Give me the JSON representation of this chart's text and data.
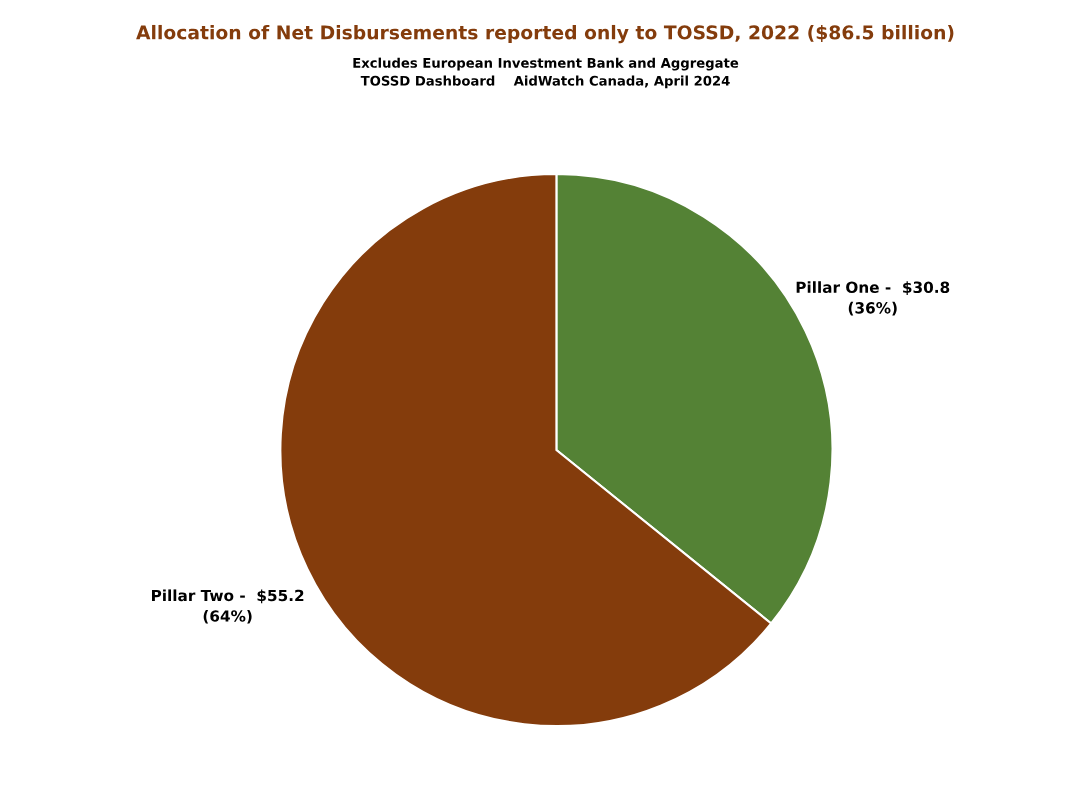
{
  "chart_data": {
    "type": "pie",
    "title": "Allocation of Net Disbursements reported only to TOSSD, 2022 ($86.5 billion)",
    "subtitle": "Excludes European Investment Bank and Aggregate\nTOSSD Dashboard    AidWatch Canada, April 2024",
    "categories": [
      "Pillar One",
      "Pillar Two"
    ],
    "values": [
      30.8,
      55.2
    ],
    "colors": [
      "#548235",
      "#843c0c"
    ],
    "value_labels": [
      "-  $30.8\n(36%)",
      "-  $55.2\n(64%)"
    ],
    "legend": false
  }
}
